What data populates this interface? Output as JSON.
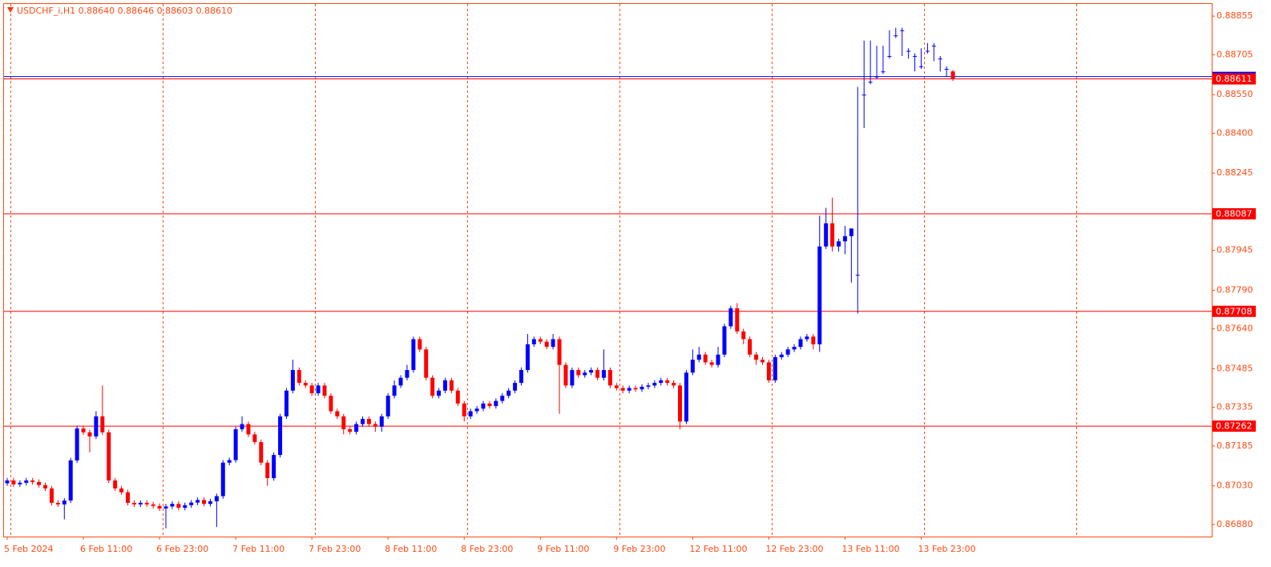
{
  "chart_data": {
    "type": "candlestick",
    "title": "USDCHF_i,H1  0.88640 0.88646 0.88603 0.88610",
    "categories": [
      "5 Feb 2024",
      null,
      null,
      null,
      null,
      null,
      null,
      null,
      null,
      null,
      null,
      null,
      "6 Feb 11:00",
      null,
      null,
      null,
      null,
      null,
      null,
      null,
      null,
      null,
      null,
      null,
      "6 Feb 23:00",
      null,
      null,
      null,
      null,
      null,
      null,
      null,
      null,
      null,
      null,
      null,
      "7 Feb 11:00",
      null,
      null,
      null,
      null,
      null,
      null,
      null,
      null,
      null,
      null,
      null,
      "7 Feb 23:00",
      null,
      null,
      null,
      null,
      null,
      null,
      null,
      null,
      null,
      null,
      null,
      "8 Feb 11:00",
      null,
      null,
      null,
      null,
      null,
      null,
      null,
      null,
      null,
      null,
      null,
      "8 Feb 23:00",
      null,
      null,
      null,
      null,
      null,
      null,
      null,
      null,
      null,
      null,
      null,
      "9 Feb 11:00",
      null,
      null,
      null,
      null,
      null,
      null,
      null,
      null,
      null,
      null,
      null,
      "9 Feb 23:00",
      null,
      null,
      null,
      null,
      null,
      null,
      null,
      null,
      null,
      null,
      null,
      "12 Feb 11:00",
      null,
      null,
      null,
      null,
      null,
      null,
      null,
      null,
      null,
      null,
      null,
      "12 Feb 23:00",
      null,
      null,
      null,
      null,
      null,
      null,
      null,
      null,
      null,
      null,
      null,
      "13 Feb 11:00",
      null,
      null,
      null,
      null,
      null,
      null,
      null,
      null,
      null,
      null,
      null,
      "13 Feb 23:00",
      null,
      null,
      null,
      null,
      null
    ],
    "open": [
      0.8704,
      0.87051,
      0.87036,
      0.87042,
      0.87051,
      0.87045,
      0.87033,
      0.8702,
      0.86964,
      0.86958,
      0.86973,
      0.87129,
      0.87253,
      0.87238,
      0.87222,
      0.873,
      0.87238,
      0.87051,
      0.8702,
      0.87005,
      0.86964,
      0.86958,
      0.86964,
      0.86958,
      0.86952,
      0.86942,
      0.8695,
      0.8696,
      0.86945,
      0.86955,
      0.86965,
      0.86975,
      0.8696,
      0.8697,
      0.8699,
      0.8712,
      0.8713,
      0.8725,
      0.8727,
      0.8723,
      0.872,
      0.8712,
      0.8706,
      0.8715,
      0.873,
      0.874,
      0.8748,
      0.8743,
      0.8742,
      0.8739,
      0.8742,
      0.8738,
      0.8732,
      0.873,
      0.8725,
      0.8724,
      0.8727,
      0.8729,
      0.8727,
      0.8726,
      0.873,
      0.8738,
      0.8742,
      0.8745,
      0.8748,
      0.876,
      0.8756,
      0.8745,
      0.8738,
      0.874,
      0.8744,
      0.874,
      0.8735,
      0.873,
      0.8732,
      0.8733,
      0.8735,
      0.8734,
      0.8736,
      0.8738,
      0.874,
      0.8743,
      0.8748,
      0.8758,
      0.876,
      0.8759,
      0.8757,
      0.876,
      0.875,
      0.8742,
      0.8748,
      0.8746,
      0.8747,
      0.8748,
      0.8745,
      0.8748,
      0.8742,
      0.8741,
      0.874,
      0.8741,
      0.87405,
      0.87415,
      0.8742,
      0.8743,
      0.8744,
      0.8743,
      0.8742,
      0.8728,
      0.8747,
      0.8752,
      0.8754,
      0.8751,
      0.875,
      0.8754,
      0.8765,
      0.8772,
      0.8763,
      0.876,
      0.8754,
      0.8752,
      0.8751,
      0.8744,
      0.8753,
      0.8754,
      0.8756,
      0.8757,
      0.876,
      0.8761,
      0.8758,
      0.8796,
      0.8805,
      0.8796,
      0.8798,
      0.88,
      0.8785,
      0.8855,
      0.886,
      0.8862,
      0.8864,
      0.887,
      0.8878,
      0.888,
      0.8872,
      0.887,
      0.8866,
      0.8872,
      0.8874,
      0.8869,
      0.8865,
      0.8864
    ],
    "high": [
      0.87061,
      0.87061,
      0.87052,
      0.87061,
      0.87061,
      0.87055,
      0.87043,
      0.8703,
      0.86974,
      0.86983,
      0.87139,
      0.87263,
      0.87263,
      0.87248,
      0.8732,
      0.8742,
      0.87248,
      0.87061,
      0.8703,
      0.87015,
      0.86974,
      0.86974,
      0.86974,
      0.86968,
      0.86962,
      0.8696,
      0.8697,
      0.8697,
      0.86965,
      0.86975,
      0.86985,
      0.86985,
      0.8698,
      0.87,
      0.8713,
      0.8714,
      0.8726,
      0.873,
      0.8728,
      0.8724,
      0.8721,
      0.8713,
      0.8716,
      0.8731,
      0.8741,
      0.8752,
      0.8749,
      0.8744,
      0.8743,
      0.8743,
      0.8743,
      0.8739,
      0.8733,
      0.8731,
      0.8726,
      0.8728,
      0.873,
      0.873,
      0.8728,
      0.8731,
      0.8739,
      0.8744,
      0.8746,
      0.875,
      0.8761,
      0.8761,
      0.8757,
      0.8746,
      0.8741,
      0.8745,
      0.8745,
      0.8741,
      0.8736,
      0.8733,
      0.8734,
      0.8736,
      0.8736,
      0.8737,
      0.8739,
      0.8741,
      0.8744,
      0.8749,
      0.8762,
      0.8761,
      0.8761,
      0.876,
      0.8762,
      0.8761,
      0.8751,
      0.8749,
      0.8749,
      0.8748,
      0.8749,
      0.8749,
      0.8756,
      0.8749,
      0.8743,
      0.8742,
      0.8742,
      0.8742,
      0.87425,
      0.8743,
      0.8744,
      0.8745,
      0.8745,
      0.8744,
      0.8743,
      0.8748,
      0.8756,
      0.8757,
      0.8755,
      0.8752,
      0.8757,
      0.8766,
      0.8773,
      0.8774,
      0.8764,
      0.8761,
      0.8755,
      0.8753,
      0.8752,
      0.8754,
      0.8755,
      0.8757,
      0.8758,
      0.8761,
      0.8762,
      0.8762,
      0.8808,
      0.8811,
      0.8815,
      0.8799,
      0.8804,
      0.8801,
      0.8858,
      0.8876,
      0.8876,
      0.8874,
      0.8874,
      0.888,
      0.8881,
      0.8881,
      0.8873,
      0.8871,
      0.8873,
      0.8875,
      0.8875,
      0.887,
      0.8866,
      0.88646
    ],
    "low": [
      0.8703,
      0.87026,
      0.87026,
      0.87032,
      0.87035,
      0.87023,
      0.8701,
      0.86954,
      0.86948,
      0.869,
      0.86963,
      0.87119,
      0.87228,
      0.8716,
      0.87212,
      0.87228,
      0.87041,
      0.8701,
      0.86995,
      0.86954,
      0.86948,
      0.86948,
      0.86948,
      0.86942,
      0.86932,
      0.86865,
      0.8694,
      0.86935,
      0.86935,
      0.86945,
      0.86955,
      0.8695,
      0.8695,
      0.8687,
      0.8698,
      0.8711,
      0.8712,
      0.8724,
      0.8722,
      0.8719,
      0.8711,
      0.8703,
      0.8705,
      0.8714,
      0.8729,
      0.8739,
      0.8742,
      0.8741,
      0.8738,
      0.8738,
      0.8737,
      0.8731,
      0.8729,
      0.8723,
      0.8723,
      0.8723,
      0.8726,
      0.8726,
      0.8724,
      0.8724,
      0.8729,
      0.8737,
      0.8741,
      0.8744,
      0.8747,
      0.8755,
      0.8744,
      0.8737,
      0.8737,
      0.8739,
      0.8739,
      0.8734,
      0.8728,
      0.8729,
      0.8731,
      0.8732,
      0.8733,
      0.8733,
      0.8735,
      0.8737,
      0.8739,
      0.8742,
      0.8747,
      0.8757,
      0.8758,
      0.8756,
      0.8756,
      0.8731,
      0.8741,
      0.8741,
      0.8745,
      0.8745,
      0.8746,
      0.8744,
      0.8744,
      0.8741,
      0.874,
      0.8739,
      0.8739,
      0.87395,
      0.87395,
      0.87405,
      0.8741,
      0.8742,
      0.8742,
      0.8741,
      0.8725,
      0.8727,
      0.8746,
      0.8751,
      0.875,
      0.8749,
      0.8749,
      0.8753,
      0.8764,
      0.8762,
      0.8758,
      0.8753,
      0.875,
      0.875,
      0.8743,
      0.8743,
      0.8752,
      0.8753,
      0.8755,
      0.8756,
      0.8759,
      0.8756,
      0.8755,
      0.8795,
      0.8794,
      0.8794,
      0.8793,
      0.8782,
      0.877,
      0.8842,
      0.8859,
      0.8861,
      0.8863,
      0.8869,
      0.8877,
      0.887,
      0.8869,
      0.8864,
      0.8865,
      0.8871,
      0.8868,
      0.8864,
      0.8862,
      0.88603
    ],
    "close": [
      0.87051,
      0.87036,
      0.87042,
      0.87051,
      0.87045,
      0.87033,
      0.8702,
      0.86964,
      0.86958,
      0.86973,
      0.87129,
      0.87253,
      0.87238,
      0.87222,
      0.873,
      0.87238,
      0.87051,
      0.8702,
      0.87005,
      0.86964,
      0.86958,
      0.86964,
      0.86958,
      0.86952,
      0.86942,
      0.8695,
      0.8696,
      0.86945,
      0.86955,
      0.86965,
      0.86975,
      0.8696,
      0.8697,
      0.8699,
      0.8712,
      0.8713,
      0.8725,
      0.8727,
      0.8723,
      0.872,
      0.8712,
      0.8706,
      0.8715,
      0.873,
      0.874,
      0.8748,
      0.8743,
      0.8742,
      0.8739,
      0.8742,
      0.8738,
      0.8732,
      0.873,
      0.8725,
      0.8724,
      0.8727,
      0.8729,
      0.8727,
      0.8726,
      0.873,
      0.8738,
      0.8742,
      0.8745,
      0.8748,
      0.876,
      0.8756,
      0.8745,
      0.8738,
      0.874,
      0.8744,
      0.874,
      0.8735,
      0.873,
      0.8732,
      0.8733,
      0.8735,
      0.8734,
      0.8736,
      0.8738,
      0.874,
      0.8743,
      0.8748,
      0.8758,
      0.876,
      0.8759,
      0.8757,
      0.876,
      0.875,
      0.8742,
      0.8748,
      0.8746,
      0.8747,
      0.8748,
      0.8745,
      0.8748,
      0.8742,
      0.8741,
      0.874,
      0.8741,
      0.87405,
      0.87415,
      0.8742,
      0.8743,
      0.8744,
      0.8743,
      0.8742,
      0.8728,
      0.8747,
      0.8752,
      0.8754,
      0.8751,
      0.875,
      0.8754,
      0.8765,
      0.8772,
      0.8763,
      0.876,
      0.8754,
      0.8752,
      0.8751,
      0.8744,
      0.8753,
      0.8754,
      0.8756,
      0.8757,
      0.876,
      0.8761,
      0.8758,
      0.8796,
      0.8805,
      0.8796,
      0.8798,
      0.88,
      0.8803,
      0.8785,
      0.8855,
      0.886,
      0.8862,
      0.8864,
      0.887,
      0.8878,
      0.888,
      0.8872,
      0.887,
      0.8866,
      0.8872,
      0.8874,
      0.8869,
      0.8865,
      0.8861
    ],
    "up_color": "#0000ff",
    "down_color": "#ff0000",
    "ylim": [
      0.86833,
      0.88902
    ],
    "yticks": [
      0.88855,
      0.88705,
      {
        "value": 0.8855,
        "label": "0.88550"
      },
      {
        "value": 0.884,
        "label": "0.88400"
      },
      0.88245,
      0.87945,
      {
        "value": 0.8779,
        "label": "0.87790"
      },
      {
        "value": 0.8764,
        "label": "0.87640"
      },
      0.87485,
      0.87335,
      0.87185,
      {
        "value": 0.8703,
        "label": "0.87030"
      },
      {
        "value": 0.8688,
        "label": "0.86880"
      }
    ],
    "levels": [
      0.87262,
      0.87708,
      0.88087,
      0.88611
    ],
    "level_color": "#ff0000",
    "ask_line": 0.8862,
    "ask_color": "#0000ff"
  }
}
